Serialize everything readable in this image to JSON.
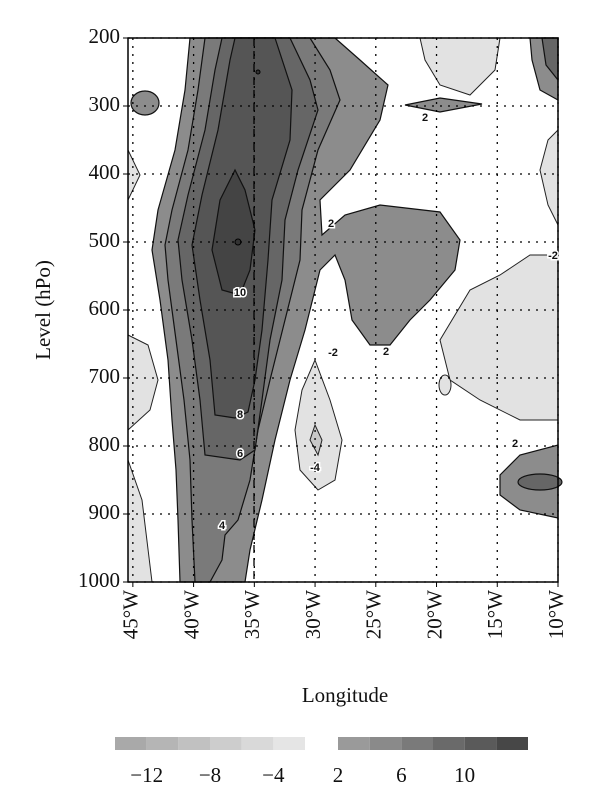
{
  "chart_data": {
    "type": "contour",
    "xlabel": "Longitude",
    "ylabel": "Level (hPo)",
    "xlim": [
      -45.4,
      -10
    ],
    "xticks": [
      {
        "value": -45,
        "label": "45°W"
      },
      {
        "value": -40,
        "label": "40°W"
      },
      {
        "value": -35,
        "label": "35°W"
      },
      {
        "value": -30,
        "label": "30°W"
      },
      {
        "value": -25,
        "label": "25°W"
      },
      {
        "value": -20,
        "label": "20°W"
      },
      {
        "value": -15,
        "label": "15°W"
      },
      {
        "value": -10,
        "label": "10°W"
      }
    ],
    "ylim": [
      1000,
      200
    ],
    "yticks": [
      200,
      300,
      400,
      500,
      600,
      700,
      800,
      900,
      1000
    ],
    "grid": true,
    "contour_labels": [
      2,
      2,
      10,
      2,
      -2,
      8,
      6,
      -4,
      4,
      2,
      -2
    ],
    "colorbar": {
      "negative_bins": [
        -14,
        -12,
        -10,
        -8,
        -6,
        -4,
        -2
      ],
      "negative_colors": [
        "#a9a9a9",
        "#b5b5b5",
        "#c1c1c1",
        "#cdcdcd",
        "#d9d9d9",
        "#e5e5e5"
      ],
      "positive_bins": [
        2,
        4,
        6,
        8,
        10,
        12,
        14
      ],
      "positive_colors": [
        "#9a9a9a",
        "#8a8a8a",
        "#7a7a7a",
        "#6a6a6a",
        "#5a5a5a",
        "#474747"
      ],
      "ticks": [
        {
          "value": -12,
          "label": "−12"
        },
        {
          "value": -8,
          "label": "−8"
        },
        {
          "value": -4,
          "label": "−4"
        },
        {
          "value": 2,
          "label": "2"
        },
        {
          "value": 6,
          "label": "6"
        },
        {
          "value": 10,
          "label": "10"
        }
      ]
    }
  }
}
